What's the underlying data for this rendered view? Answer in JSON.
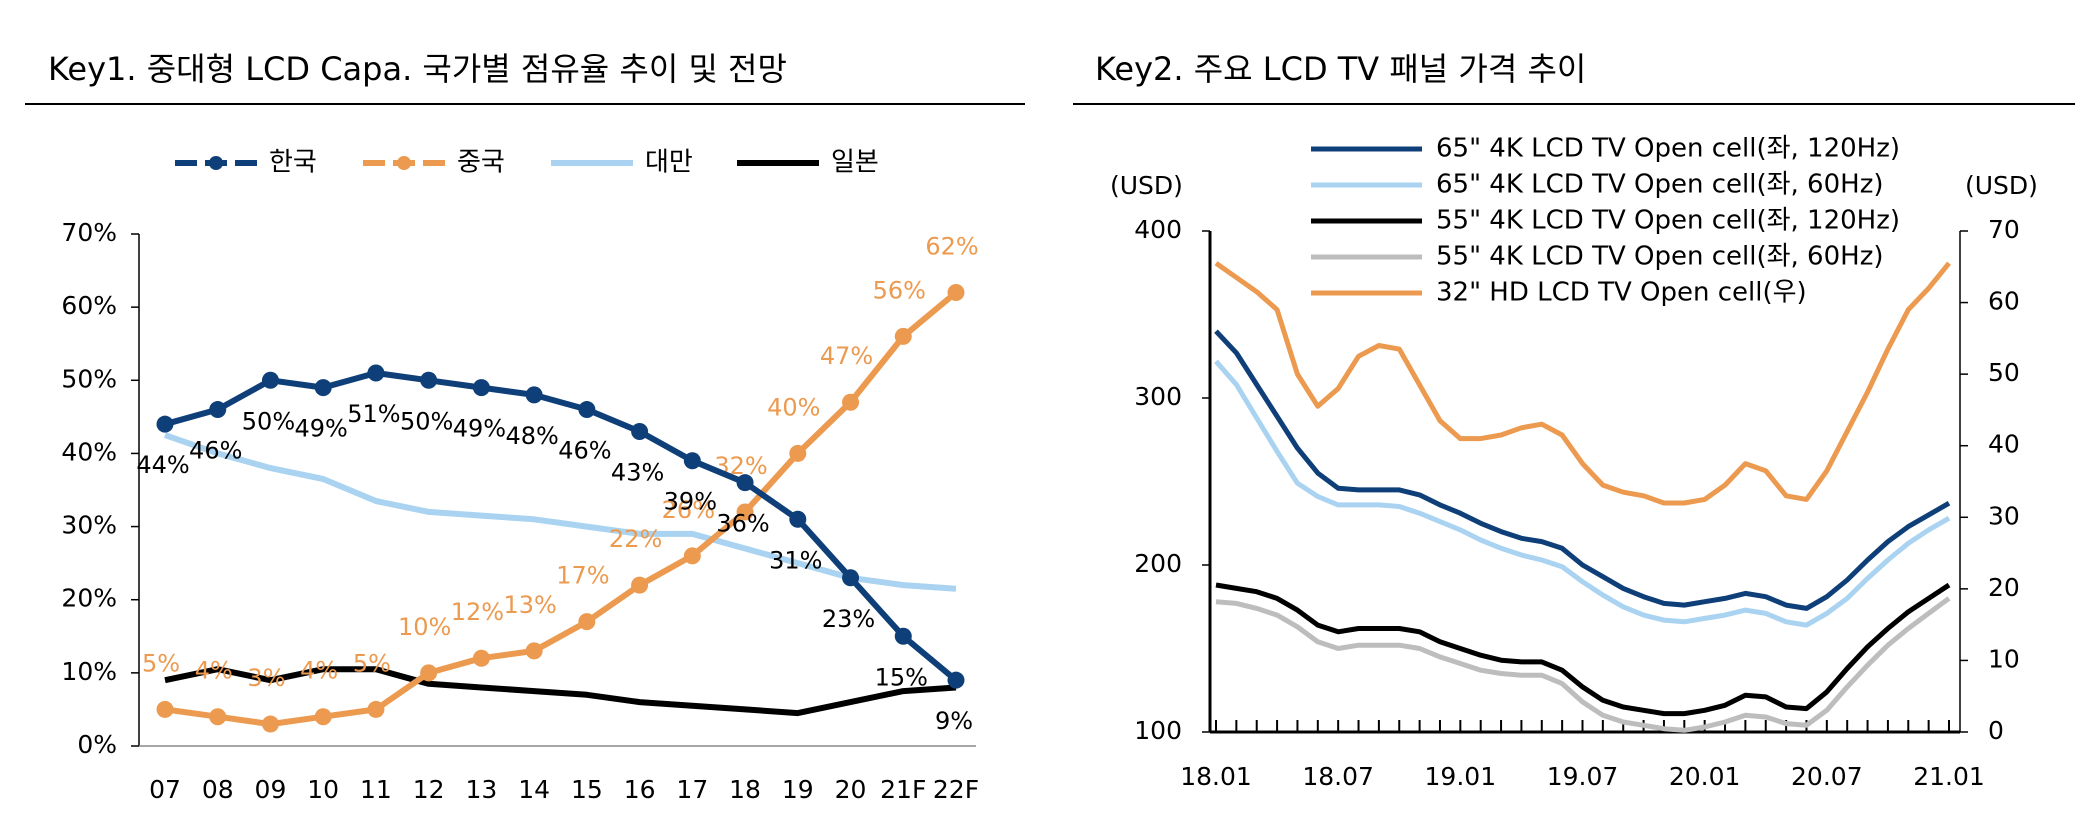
{
  "chart_data": [
    {
      "type": "line",
      "title": "Key1. 중대형 LCD Capa. 국가별 점유율 추이 및 전망",
      "categories": [
        "07",
        "08",
        "09",
        "10",
        "11",
        "12",
        "13",
        "14",
        "15",
        "16",
        "17",
        "18",
        "19",
        "20",
        "21F",
        "22F"
      ],
      "ylim": [
        0,
        70
      ],
      "yticks": [
        {
          "value": 0,
          "label": "0%"
        },
        {
          "value": 10,
          "label": "10%"
        },
        {
          "value": 20,
          "label": "20%"
        },
        {
          "value": 30,
          "label": "30%"
        },
        {
          "value": 40,
          "label": "40%"
        },
        {
          "value": 50,
          "label": "50%"
        },
        {
          "value": 60,
          "label": "60%"
        },
        {
          "value": 70,
          "label": "70%"
        }
      ],
      "legend": "top",
      "series": [
        {
          "name": "한국",
          "color": "#0f3f78",
          "marker": true,
          "values": [
            44,
            46,
            50,
            49,
            51,
            50,
            49,
            48,
            46,
            43,
            39,
            36,
            31,
            23,
            15,
            9
          ],
          "value_labels": [
            "44%",
            "46%",
            "50%",
            "49%",
            "51%",
            "50%",
            "49%",
            "48%",
            "46%",
            "43%",
            "39%",
            "36%",
            "31%",
            "23%",
            "15%",
            "9%"
          ]
        },
        {
          "name": "중국",
          "color": "#ec9a4f",
          "marker": true,
          "values": [
            5,
            4,
            3,
            4,
            5,
            10,
            12,
            13,
            17,
            22,
            26,
            32,
            40,
            47,
            56,
            62
          ],
          "value_labels": [
            "5%",
            "4%",
            "3%",
            "4%",
            "5%",
            "10%",
            "12%",
            "13%",
            "17%",
            "22%",
            "26%",
            "32%",
            "40%",
            "47%",
            "56%",
            "62%"
          ]
        },
        {
          "name": "대만",
          "color": "#a9d3f0",
          "marker": false,
          "values": [
            42.5,
            40,
            38,
            36.5,
            33.5,
            32,
            31.5,
            31,
            30,
            29,
            29,
            27,
            25,
            23,
            22,
            21.5
          ]
        },
        {
          "name": "일본",
          "color": "#000000",
          "marker": false,
          "values": [
            9,
            10.5,
            9,
            10.5,
            10.5,
            8.5,
            8,
            7.5,
            7,
            6,
            5.5,
            5,
            4.5,
            6,
            7.5,
            8
          ]
        }
      ]
    },
    {
      "type": "line",
      "title": "Key2. 주요 LCD TV 패널 가격 추이",
      "categories": [
        "18.01",
        null,
        null,
        null,
        null,
        null,
        "18.07",
        null,
        null,
        null,
        null,
        null,
        "19.01",
        null,
        null,
        null,
        null,
        null,
        "19.07",
        null,
        null,
        null,
        null,
        null,
        "20.01",
        null,
        null,
        null,
        null,
        null,
        "20.07",
        null,
        null,
        null,
        null,
        null,
        "21.01"
      ],
      "ylabel": "(USD)",
      "y2label": "(USD)",
      "ylim": [
        100,
        400
      ],
      "yticks": [
        100,
        200,
        300,
        400
      ],
      "y2lim": [
        0,
        70
      ],
      "y2ticks": [
        0,
        10,
        20,
        30,
        40,
        50,
        60,
        70
      ],
      "legend": "top",
      "series": [
        {
          "name": "65\" 4K LCD TV Open cell(좌, 120Hz)",
          "color": "#0f3f78",
          "values": [
            340,
            327,
            308,
            289,
            270,
            255,
            246,
            245,
            245,
            245,
            242,
            236,
            231,
            225,
            220,
            216,
            214,
            210,
            200,
            193,
            186,
            181,
            177,
            176,
            178,
            180,
            183,
            181,
            176,
            174,
            181,
            191,
            203,
            214,
            223,
            230,
            237
          ]
        },
        {
          "name": "65\" 4K LCD TV Open cell(좌, 60Hz)",
          "color": "#a9d3f0",
          "values": [
            322,
            308,
            288,
            268,
            249,
            241,
            236,
            236,
            236,
            235,
            231,
            226,
            221,
            215,
            210,
            206,
            203,
            199,
            190,
            182,
            175,
            170,
            167,
            166,
            168,
            170,
            173,
            171,
            166,
            164,
            171,
            180,
            192,
            203,
            213,
            221,
            228
          ]
        },
        {
          "name": "55\" 4K LCD TV Open cell(좌, 120Hz)",
          "color": "#000000",
          "values": [
            188,
            186,
            184,
            180,
            173,
            164,
            160,
            162,
            162,
            162,
            160,
            154,
            150,
            146,
            143,
            142,
            142,
            137,
            127,
            119,
            115,
            113,
            111,
            111,
            113,
            116,
            122,
            121,
            115,
            114,
            124,
            138,
            151,
            162,
            172,
            180,
            188
          ]
        },
        {
          "name": "55\" 4K LCD TV Open cell(좌, 60Hz)",
          "color": "#bdbdbd",
          "values": [
            178,
            177,
            174,
            170,
            163,
            154,
            150,
            152,
            152,
            152,
            150,
            145,
            141,
            137,
            135,
            134,
            134,
            129,
            118,
            110,
            106,
            104,
            102,
            101,
            103,
            106,
            110,
            109,
            105,
            104,
            113,
            127,
            140,
            152,
            162,
            171,
            180
          ]
        },
        {
          "name": "32\" HD LCD TV Open cell(우)",
          "color": "#ec9a4f",
          "axis": "y2",
          "values": [
            65.5,
            63.5,
            61.5,
            59,
            50,
            45.5,
            48,
            52.5,
            54,
            53.5,
            48.5,
            43.5,
            41,
            41,
            41.5,
            42.5,
            43,
            41.5,
            37.5,
            34.5,
            33.5,
            33,
            32,
            32,
            32.5,
            34.5,
            37.5,
            36.5,
            33,
            32.5,
            36.5,
            42,
            47.5,
            53.5,
            59,
            62,
            65.5
          ]
        }
      ]
    }
  ]
}
